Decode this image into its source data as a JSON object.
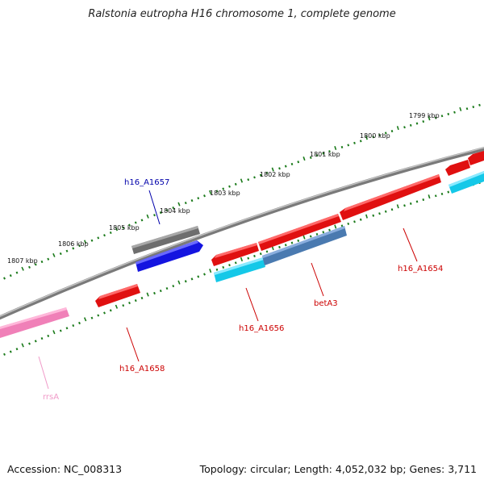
{
  "title": "Ralstonia eutropha H16 chromosome 1, complete genome",
  "footer": {
    "accession": "Accession: NC_008313",
    "summary": "Topology: circular; Length: 4,052,032 bp; Genes: 3,711"
  },
  "colors": {
    "backbone": "#8a8a8a",
    "tick": "#1a7a1a",
    "red_gene": "#e01010",
    "blue_gene": "#1414e0",
    "gray_gene": "#707070",
    "cyan_gene": "#14c8e8",
    "steel_gene": "#4a7ab0",
    "pink_gene": "#f080b8",
    "label_red": "#cc0000",
    "label_blue": "#0000aa",
    "label_pink": "#f09ac8"
  },
  "kbp_labels": [
    "1799 kbp",
    "1800 kbp",
    "1801 kbp",
    "1802 kbp",
    "1803 kbp",
    "1804 kbp",
    "1805 kbp",
    "1806 kbp",
    "1807 kbp"
  ],
  "genes": [
    {
      "id": "h16_A1657",
      "label": "h16_A1657",
      "color": "blue_gene",
      "label_color": "label_blue"
    },
    {
      "id": "gray-gene",
      "label": "",
      "color": "gray_gene"
    },
    {
      "id": "h16_A1658",
      "label": "h16_A1658",
      "color": "red_gene",
      "label_color": "label_red"
    },
    {
      "id": "h16_A1656-red",
      "label": "",
      "color": "red_gene"
    },
    {
      "id": "h16_A1656",
      "label": "h16_A1656",
      "color": "cyan_gene",
      "label_color": "label_red"
    },
    {
      "id": "betA3",
      "label": "betA3",
      "color": "steel_gene",
      "label_color": "label_red"
    },
    {
      "id": "red-gene-a",
      "label": "",
      "color": "red_gene"
    },
    {
      "id": "h16_A1654",
      "label": "h16_A1654",
      "color": "red_gene",
      "label_color": "label_red"
    },
    {
      "id": "red-gene-edge-1",
      "label": "",
      "color": "red_gene"
    },
    {
      "id": "red-gene-edge-2",
      "label": "",
      "color": "red_gene"
    },
    {
      "id": "cyan-gene-edge",
      "label": "",
      "color": "cyan_gene"
    },
    {
      "id": "rrsA",
      "label": "rrsA",
      "color": "pink_gene",
      "label_color": "label_pink"
    }
  ]
}
